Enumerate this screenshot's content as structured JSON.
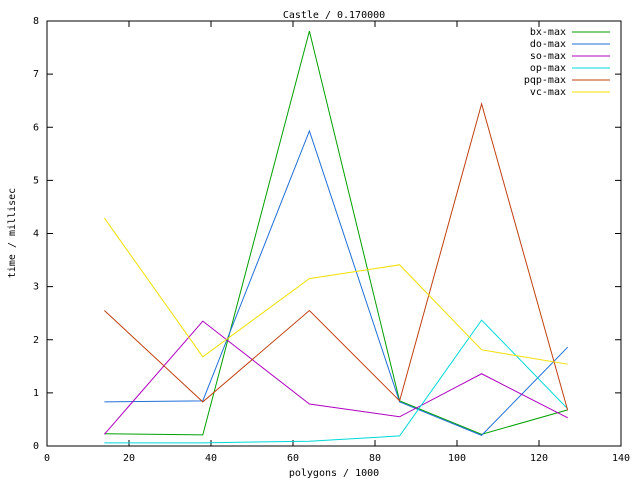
{
  "chart_data": {
    "type": "line",
    "title": "Castle / 0.170000",
    "x_label": "polygons / 1000",
    "y_label": "time / millisec",
    "xlim": [
      0,
      140
    ],
    "xticks": [
      0,
      20,
      40,
      60,
      80,
      100,
      120,
      140
    ],
    "ylim": [
      0,
      8
    ],
    "yticks": [
      0,
      1,
      2,
      3,
      4,
      5,
      6,
      7,
      8
    ],
    "grid": false,
    "legend": "top-right",
    "x": [
      14,
      38,
      64,
      86,
      106,
      127
    ],
    "series": [
      {
        "name": "bx-max",
        "color": "#00a000",
        "values": [
          0.23,
          0.21,
          7.81,
          0.85,
          0.22,
          0.68
        ]
      },
      {
        "name": "do-max",
        "color": "#1f6fd8",
        "values": [
          0.83,
          0.85,
          5.93,
          0.83,
          0.2,
          1.86
        ]
      },
      {
        "name": "so-max",
        "color": "#b000c0",
        "values": [
          0.22,
          2.35,
          0.79,
          0.55,
          1.36,
          0.53
        ]
      },
      {
        "name": "op-max",
        "color": "#00d8d8",
        "values": [
          0.06,
          0.06,
          0.09,
          0.19,
          2.37,
          0.7
        ]
      },
      {
        "name": "pqp-max",
        "color": "#c04010",
        "values": [
          2.55,
          0.83,
          2.55,
          0.85,
          6.44,
          0.67
        ]
      },
      {
        "name": "vc-max",
        "color": "#f0e000",
        "values": [
          4.29,
          1.68,
          3.15,
          3.41,
          1.81,
          1.54
        ]
      }
    ]
  }
}
